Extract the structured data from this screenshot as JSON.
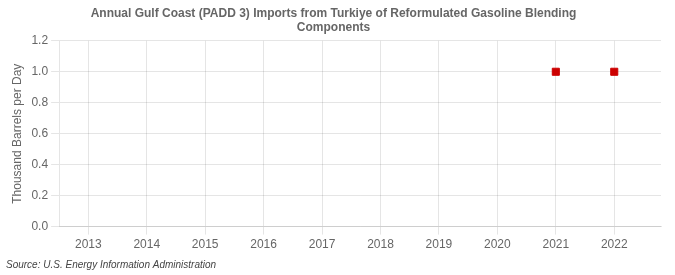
{
  "chart_data": {
    "type": "scatter",
    "title": "Annual Gulf Coast (PADD 3) Imports from Turkiye of Reformulated Gasoline Blending\nComponents",
    "ylabel": "Thousand Barrels per Day",
    "annotations": [
      "Source: U.S. Energy Information Administration"
    ],
    "x": [
      2021,
      2022
    ],
    "values": [
      1.0,
      1.0
    ],
    "color": "#cc0000",
    "marker": "square",
    "xlim": [
      2012.5,
      2022.8
    ],
    "xticks": [
      2013,
      2014,
      2015,
      2016,
      2017,
      2018,
      2019,
      2020,
      2021,
      2022
    ],
    "ylim": [
      0,
      1.2
    ],
    "yticks": [
      {
        "value": 0,
        "label": "0.0"
      },
      0.2,
      0.4,
      0.6,
      0.8,
      {
        "value": 1,
        "label": "1.0"
      },
      1.2
    ],
    "grid": true
  }
}
